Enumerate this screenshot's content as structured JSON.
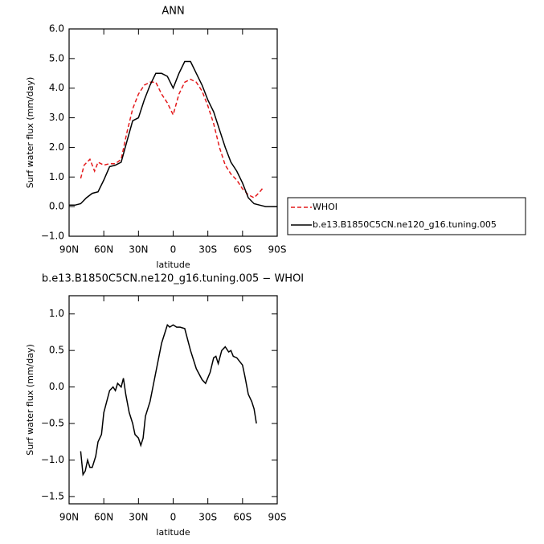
{
  "chart_data": [
    {
      "type": "line",
      "title": "ANN",
      "x_label": "latitude",
      "y_label": "Surf water flux (mm/day)",
      "xlim": [
        90,
        -90
      ],
      "ylim": [
        -1,
        6
      ],
      "xticks": [
        {
          "value": 90,
          "label": "90N"
        },
        {
          "value": 60,
          "label": "60N"
        },
        {
          "value": 30,
          "label": "30N"
        },
        0,
        {
          "value": -30,
          "label": "30S"
        },
        {
          "value": -60,
          "label": "60S"
        },
        {
          "value": -90,
          "label": "90S"
        }
      ],
      "yticks": [
        {
          "value": -1,
          "label": "−1.0"
        },
        {
          "value": 0,
          "label": "0.0"
        },
        {
          "value": 1,
          "label": "1.0"
        },
        {
          "value": 2,
          "label": "2.0"
        },
        {
          "value": 3,
          "label": "3.0"
        },
        {
          "value": 4,
          "label": "4.0"
        },
        {
          "value": 5,
          "label": "5.0"
        },
        {
          "value": 6,
          "label": "6.0"
        }
      ],
      "legend": "right",
      "series": [
        {
          "name": "WHOI",
          "color": "#e41a1c",
          "line_style": "dashed",
          "x": [
            80,
            77,
            72,
            68,
            65,
            60,
            55,
            50,
            45,
            40,
            35,
            30,
            25,
            20,
            15,
            10,
            5,
            0,
            -5,
            -10,
            -15,
            -20,
            -25,
            -30,
            -35,
            -40,
            -45,
            -50,
            -55,
            -60,
            -65,
            -70,
            -75,
            -78
          ],
          "values": [
            0.95,
            1.4,
            1.6,
            1.2,
            1.5,
            1.4,
            1.45,
            1.45,
            1.6,
            2.5,
            3.3,
            3.8,
            4.1,
            4.2,
            4.2,
            3.8,
            3.5,
            3.1,
            3.8,
            4.2,
            4.3,
            4.2,
            3.9,
            3.4,
            2.8,
            2.0,
            1.4,
            1.1,
            0.9,
            0.6,
            0.4,
            0.3,
            0.5,
            0.65
          ]
        },
        {
          "name": "b.e13.B1850C5CN.ne120_g16.tuning.005",
          "color": "#000000",
          "line_style": "solid",
          "x": [
            90,
            85,
            80,
            75,
            70,
            65,
            60,
            55,
            50,
            45,
            40,
            35,
            30,
            25,
            20,
            15,
            10,
            5,
            0,
            -5,
            -10,
            -15,
            -20,
            -25,
            -30,
            -35,
            -40,
            -45,
            -50,
            -55,
            -60,
            -65,
            -70,
            -75,
            -80,
            -85,
            -90
          ],
          "values": [
            0.05,
            0.05,
            0.1,
            0.3,
            0.45,
            0.5,
            0.9,
            1.35,
            1.4,
            1.5,
            2.2,
            2.9,
            3.0,
            3.6,
            4.1,
            4.5,
            4.5,
            4.4,
            4.0,
            4.5,
            4.9,
            4.9,
            4.5,
            4.1,
            3.6,
            3.2,
            2.6,
            2.0,
            1.5,
            1.2,
            0.8,
            0.3,
            0.1,
            0.05,
            0.0,
            0.0,
            0.0
          ]
        }
      ]
    },
    {
      "type": "line",
      "title": "b.e13.B1850C5CN.ne120_g16.tuning.005 − WHOI",
      "x_label": "latitude",
      "y_label": "Surf water flux (mm/day)",
      "xlim": [
        90,
        -90
      ],
      "ylim": [
        -1.6,
        1.25
      ],
      "xticks": [
        {
          "value": 90,
          "label": "90N"
        },
        {
          "value": 60,
          "label": "60N"
        },
        {
          "value": 30,
          "label": "30N"
        },
        0,
        {
          "value": -30,
          "label": "30S"
        },
        {
          "value": -60,
          "label": "60S"
        },
        {
          "value": -90,
          "label": "90S"
        }
      ],
      "yticks": [
        {
          "value": -1.5,
          "label": "−1.5"
        },
        {
          "value": -1,
          "label": "−1.0"
        },
        {
          "value": -0.5,
          "label": "−0.5"
        },
        {
          "value": 0,
          "label": "0.0"
        },
        0.5,
        {
          "value": 1,
          "label": "1.0"
        }
      ],
      "series": [
        {
          "color": "#000000",
          "line_style": "solid",
          "x": [
            80,
            78,
            76,
            74,
            72,
            70,
            67,
            65,
            62,
            60,
            55,
            52,
            50,
            48,
            45,
            43,
            41,
            38,
            35,
            33,
            30,
            28,
            26,
            24,
            20,
            15,
            10,
            5,
            3,
            0,
            -3,
            -6,
            -10,
            -15,
            -20,
            -25,
            -28,
            -32,
            -35,
            -37,
            -39,
            -42,
            -45,
            -48,
            -50,
            -52,
            -55,
            -60,
            -62,
            -65,
            -68,
            -70,
            -72
          ],
          "values": [
            -0.88,
            -1.2,
            -1.15,
            -1.0,
            -1.1,
            -1.1,
            -0.95,
            -0.75,
            -0.65,
            -0.35,
            -0.05,
            0.0,
            -0.05,
            0.05,
            0.0,
            0.12,
            -0.1,
            -0.35,
            -0.5,
            -0.65,
            -0.7,
            -0.8,
            -0.7,
            -0.4,
            -0.2,
            0.2,
            0.6,
            0.85,
            0.82,
            0.85,
            0.82,
            0.82,
            0.8,
            0.5,
            0.25,
            0.1,
            0.05,
            0.2,
            0.4,
            0.42,
            0.32,
            0.5,
            0.55,
            0.48,
            0.5,
            0.42,
            0.4,
            0.3,
            0.15,
            -0.1,
            -0.2,
            -0.3,
            -0.5
          ]
        }
      ]
    }
  ]
}
